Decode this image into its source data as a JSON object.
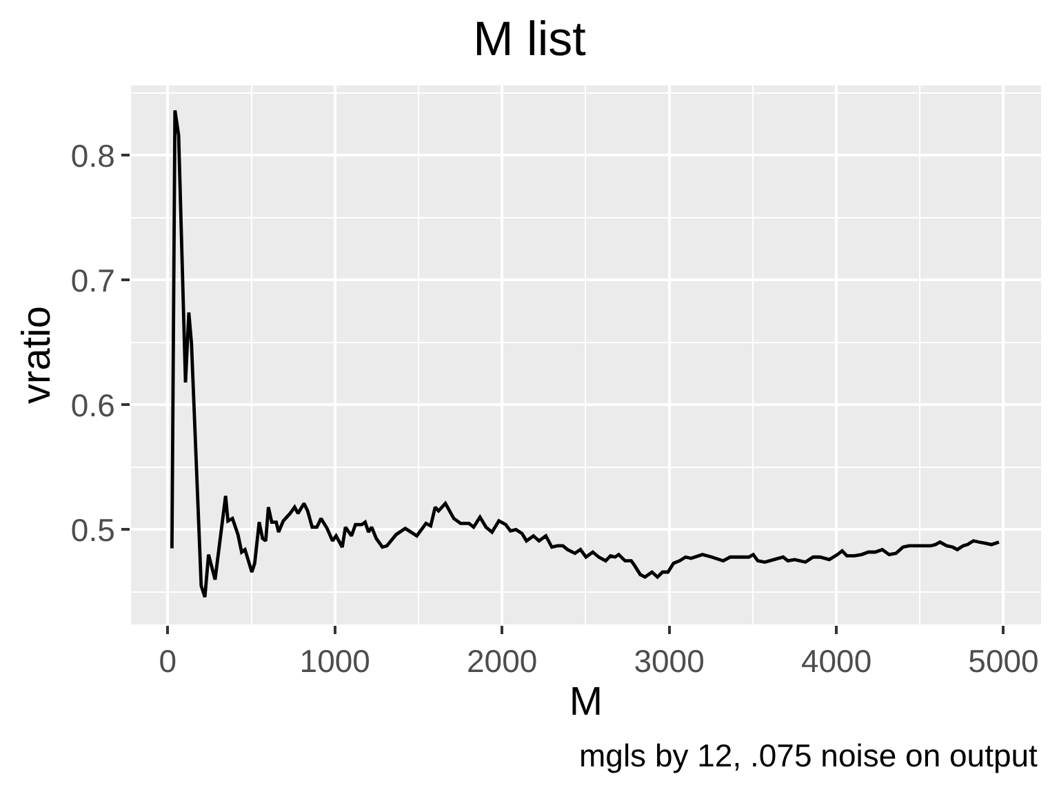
{
  "chart_data": {
    "type": "line",
    "title": "M list",
    "xlabel": "M",
    "ylabel": "vratio",
    "annotations": [
      "mgls by 12, .075 noise on output"
    ],
    "x": [
      25,
      43,
      65,
      106,
      126,
      142,
      200,
      222,
      244,
      283,
      346,
      360,
      387,
      420,
      442,
      462,
      503,
      520,
      547,
      567,
      586,
      602,
      622,
      649,
      663,
      691,
      732,
      759,
      779,
      815,
      837,
      864,
      892,
      917,
      953,
      986,
      1007,
      1044,
      1063,
      1099,
      1123,
      1160,
      1181,
      1201,
      1220,
      1247,
      1284,
      1311,
      1366,
      1421,
      1490,
      1545,
      1573,
      1600,
      1620,
      1661,
      1711,
      1752,
      1802,
      1830,
      1868,
      1904,
      1940,
      1981,
      2022,
      2050,
      2083,
      2119,
      2146,
      2188,
      2221,
      2262,
      2298,
      2331,
      2364,
      2392,
      2436,
      2469,
      2502,
      2543,
      2579,
      2620,
      2649,
      2676,
      2698,
      2736,
      2773,
      2794,
      2827,
      2855,
      2897,
      2930,
      2960,
      2993,
      3026,
      3062,
      3098,
      3131,
      3199,
      3255,
      3323,
      3365,
      3420,
      3476,
      3503,
      3530,
      3572,
      3627,
      3682,
      3710,
      3751,
      3815,
      3861,
      3902,
      3958,
      4007,
      4035,
      4063,
      4109,
      4151,
      4192,
      4233,
      4275,
      4316,
      4357,
      4399,
      4436,
      4496,
      4564,
      4593,
      4620,
      4661,
      4696,
      4724,
      4758,
      4785,
      4820,
      4854,
      4895,
      4928,
      4973
    ],
    "series": [
      {
        "color": "#000000",
        "values": [
          0.485,
          0.836,
          0.816,
          0.618,
          0.674,
          0.649,
          0.455,
          0.446,
          0.48,
          0.46,
          0.527,
          0.507,
          0.509,
          0.496,
          0.482,
          0.484,
          0.466,
          0.473,
          0.506,
          0.493,
          0.491,
          0.518,
          0.506,
          0.506,
          0.498,
          0.507,
          0.513,
          0.518,
          0.513,
          0.521,
          0.515,
          0.502,
          0.502,
          0.509,
          0.501,
          0.491,
          0.495,
          0.486,
          0.502,
          0.495,
          0.504,
          0.504,
          0.506,
          0.498,
          0.502,
          0.493,
          0.486,
          0.487,
          0.496,
          0.501,
          0.495,
          0.505,
          0.503,
          0.518,
          0.515,
          0.521,
          0.509,
          0.505,
          0.505,
          0.502,
          0.51,
          0.502,
          0.498,
          0.507,
          0.504,
          0.499,
          0.5,
          0.497,
          0.491,
          0.495,
          0.491,
          0.495,
          0.486,
          0.487,
          0.487,
          0.484,
          0.481,
          0.484,
          0.478,
          0.482,
          0.478,
          0.475,
          0.479,
          0.478,
          0.48,
          0.475,
          0.475,
          0.471,
          0.464,
          0.462,
          0.466,
          0.462,
          0.466,
          0.466,
          0.473,
          0.475,
          0.478,
          0.477,
          0.48,
          0.478,
          0.475,
          0.478,
          0.478,
          0.478,
          0.48,
          0.475,
          0.474,
          0.476,
          0.478,
          0.475,
          0.476,
          0.474,
          0.478,
          0.478,
          0.476,
          0.48,
          0.483,
          0.479,
          0.479,
          0.48,
          0.482,
          0.482,
          0.484,
          0.48,
          0.481,
          0.486,
          0.487,
          0.487,
          0.487,
          0.488,
          0.49,
          0.487,
          0.486,
          0.484,
          0.487,
          0.488,
          0.491,
          0.49,
          0.489,
          0.488,
          0.49
        ]
      }
    ],
    "xlim": [
      -220,
      5225
    ],
    "ylim": [
      0.424,
      0.856
    ],
    "xticks": [
      0,
      1000,
      2000,
      3000,
      4000,
      5000
    ],
    "yticks": [
      0.5,
      0.6,
      0.7,
      0.8
    ],
    "grid": true
  }
}
